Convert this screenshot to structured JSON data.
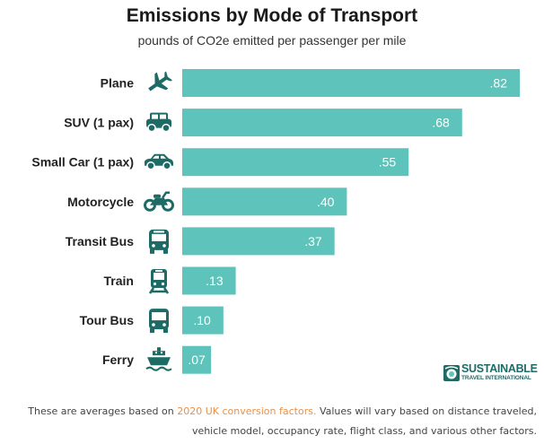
{
  "chart_data": {
    "type": "bar",
    "orientation": "horizontal",
    "title": "Emissions by Mode of Transport",
    "subtitle": "pounds of CO2e emitted per passenger per mile",
    "categories": [
      "Plane",
      "SUV (1 pax)",
      "Small Car (1 pax)",
      "Motorcycle",
      "Transit Bus",
      "Train",
      "Tour Bus",
      "Ferry"
    ],
    "icons": [
      "plane-icon",
      "suv-icon",
      "small-car-icon",
      "motorcycle-icon",
      "transit-bus-icon",
      "train-icon",
      "tour-bus-icon",
      "ferry-icon"
    ],
    "values": [
      0.82,
      0.68,
      0.55,
      0.4,
      0.37,
      0.13,
      0.1,
      0.07
    ],
    "value_labels": [
      ".82",
      ".68",
      ".55",
      ".40",
      ".37",
      ".13",
      ".10",
      ".07"
    ],
    "xlabel": "",
    "ylabel": "",
    "xlim": [
      0,
      0.82
    ],
    "grid": false,
    "bar_color": "#5ec4bb",
    "icon_color": "#1e6b66"
  },
  "logo": {
    "line1": "SUSTAINABLE",
    "line2": "TRAVEL INTERNATIONAL"
  },
  "footnote": {
    "before_link": "These are averages based on ",
    "link": "2020 UK conversion factors.",
    "after_link": " Values will vary based on distance traveled,",
    "line2": "vehicle model, occupancy rate, flight class, and various other factors.",
    "link_color": "#e8904a"
  }
}
